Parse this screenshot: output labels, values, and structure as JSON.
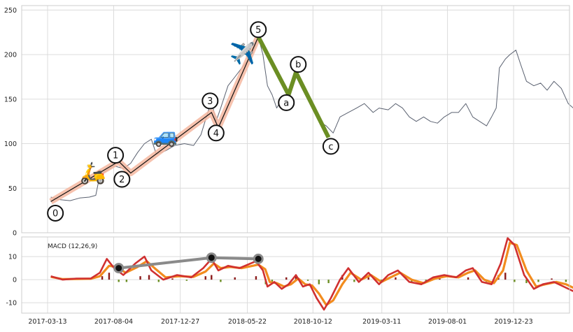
{
  "chart_data": [
    {
      "type": "line",
      "panel": "price",
      "y_ticks": [
        0,
        50,
        100,
        150,
        200,
        250
      ],
      "ylim": [
        0,
        255
      ],
      "grid": true,
      "price_series": [
        {
          "x": "2017-03-20",
          "y": 40
        },
        {
          "x": "2017-04-10",
          "y": 37
        },
        {
          "x": "2017-05-01",
          "y": 36
        },
        {
          "x": "2017-05-22",
          "y": 39
        },
        {
          "x": "2017-06-12",
          "y": 40
        },
        {
          "x": "2017-06-26",
          "y": 42
        },
        {
          "x": "2017-07-05",
          "y": 65
        },
        {
          "x": "2017-07-20",
          "y": 70
        },
        {
          "x": "2017-08-05",
          "y": 75
        },
        {
          "x": "2017-08-25",
          "y": 72
        },
        {
          "x": "2017-09-10",
          "y": 78
        },
        {
          "x": "2017-09-25",
          "y": 90
        },
        {
          "x": "2017-10-10",
          "y": 100
        },
        {
          "x": "2017-10-25",
          "y": 105
        },
        {
          "x": "2017-11-05",
          "y": 88
        },
        {
          "x": "2017-11-25",
          "y": 92
        },
        {
          "x": "2017-12-15",
          "y": 98
        },
        {
          "x": "2018-01-05",
          "y": 100
        },
        {
          "x": "2018-01-25",
          "y": 98
        },
        {
          "x": "2018-02-10",
          "y": 110
        },
        {
          "x": "2018-02-25",
          "y": 135
        },
        {
          "x": "2018-03-05",
          "y": 148
        },
        {
          "x": "2018-03-15",
          "y": 125
        },
        {
          "x": "2018-03-25",
          "y": 140
        },
        {
          "x": "2018-04-10",
          "y": 165
        },
        {
          "x": "2018-04-25",
          "y": 175
        },
        {
          "x": "2018-05-10",
          "y": 185
        },
        {
          "x": "2018-05-25",
          "y": 195
        },
        {
          "x": "2018-06-05",
          "y": 205
        },
        {
          "x": "2018-06-15",
          "y": 220
        },
        {
          "x": "2018-06-25",
          "y": 200
        },
        {
          "x": "2018-07-05",
          "y": 165
        },
        {
          "x": "2018-07-15",
          "y": 155
        },
        {
          "x": "2018-07-25",
          "y": 140
        },
        {
          "x": "2018-08-05",
          "y": 150
        },
        {
          "x": "2018-08-20",
          "y": 145
        },
        {
          "x": "2018-09-01",
          "y": 180
        },
        {
          "x": "2018-09-15",
          "y": 165
        },
        {
          "x": "2018-09-25",
          "y": 155
        },
        {
          "x": "2018-10-10",
          "y": 140
        },
        {
          "x": "2018-10-25",
          "y": 125
        },
        {
          "x": "2018-11-10",
          "y": 120
        },
        {
          "x": "2018-11-25",
          "y": 112
        },
        {
          "x": "2018-12-10",
          "y": 130
        },
        {
          "x": "2018-12-28",
          "y": 135
        },
        {
          "x": "2019-01-15",
          "y": 140
        },
        {
          "x": "2019-02-01",
          "y": 145
        },
        {
          "x": "2019-02-20",
          "y": 135
        },
        {
          "x": "2019-03-05",
          "y": 140
        },
        {
          "x": "2019-03-25",
          "y": 138
        },
        {
          "x": "2019-04-10",
          "y": 145
        },
        {
          "x": "2019-04-25",
          "y": 140
        },
        {
          "x": "2019-05-10",
          "y": 130
        },
        {
          "x": "2019-05-25",
          "y": 125
        },
        {
          "x": "2019-06-10",
          "y": 130
        },
        {
          "x": "2019-06-25",
          "y": 125
        },
        {
          "x": "2019-07-10",
          "y": 123
        },
        {
          "x": "2019-07-25",
          "y": 130
        },
        {
          "x": "2019-08-10",
          "y": 135
        },
        {
          "x": "2019-08-25",
          "y": 135
        },
        {
          "x": "2019-09-10",
          "y": 145
        },
        {
          "x": "2019-09-25",
          "y": 130
        },
        {
          "x": "2019-10-10",
          "y": 125
        },
        {
          "x": "2019-10-25",
          "y": 120
        },
        {
          "x": "2019-11-05",
          "y": 130
        },
        {
          "x": "2019-11-15",
          "y": 140
        },
        {
          "x": "2019-11-22",
          "y": 185
        },
        {
          "x": "2019-12-05",
          "y": 195
        },
        {
          "x": "2019-12-15",
          "y": 200
        },
        {
          "x": "2019-12-28",
          "y": 205
        },
        {
          "x": "2020-01-08",
          "y": 188
        },
        {
          "x": "2020-01-20",
          "y": 170
        },
        {
          "x": "2020-02-05",
          "y": 165
        },
        {
          "x": "2020-02-20",
          "y": 168
        },
        {
          "x": "2020-03-05",
          "y": 160
        },
        {
          "x": "2020-03-20",
          "y": 170
        },
        {
          "x": "2020-04-05",
          "y": 162
        },
        {
          "x": "2020-04-20",
          "y": 145
        },
        {
          "x": "2020-05-01",
          "y": 140
        }
      ],
      "impulse_wave": [
        {
          "x": "2017-03-20",
          "y": 35
        },
        {
          "x": "2017-08-15",
          "y": 80
        },
        {
          "x": "2017-09-10",
          "y": 67
        },
        {
          "x": "2018-03-05",
          "y": 135
        },
        {
          "x": "2018-03-20",
          "y": 118
        },
        {
          "x": "2018-06-15",
          "y": 220
        }
      ],
      "corrective_wave": [
        {
          "x": "2018-06-15",
          "y": 220
        },
        {
          "x": "2018-08-20",
          "y": 155
        },
        {
          "x": "2018-09-05",
          "y": 180
        },
        {
          "x": "2018-11-15",
          "y": 107
        }
      ],
      "wave_labels": [
        {
          "label": "0",
          "x": "2017-03-30",
          "y": 22
        },
        {
          "label": "1",
          "x": "2017-08-08",
          "y": 87
        },
        {
          "label": "2",
          "x": "2017-08-22",
          "y": 60
        },
        {
          "label": "3",
          "x": "2018-03-02",
          "y": 148
        },
        {
          "label": "4",
          "x": "2018-03-15",
          "y": 112
        },
        {
          "label": "5",
          "x": "2018-06-15",
          "y": 228
        },
        {
          "label": "a",
          "x": "2018-08-15",
          "y": 146
        },
        {
          "label": "b",
          "x": "2018-09-10",
          "y": 189
        },
        {
          "label": "c",
          "x": "2018-11-20",
          "y": 97
        }
      ],
      "emoji_markers": [
        {
          "name": "scooter",
          "glyph": "🛵",
          "x": "2017-06-20",
          "y": 66
        },
        {
          "name": "car",
          "glyph": "🚙",
          "x": "2017-11-25",
          "y": 108
        },
        {
          "name": "airplane",
          "glyph": "✈️",
          "x": "2018-05-12",
          "y": 200
        }
      ]
    },
    {
      "type": "line",
      "panel": "macd",
      "label": "MACD (12,26,9)",
      "y_ticks": [
        -10,
        0,
        10
      ],
      "ylim": [
        -14.5,
        18.5
      ],
      "x_ticks": [
        "2017-03-13",
        "2017-08-04",
        "2017-12-27",
        "2018-05-22",
        "2018-10-12",
        "2019-03-11",
        "2019-08-01",
        "2019-12-23"
      ],
      "grid": true,
      "macd_line": [
        {
          "x": "2017-03-20",
          "y": 1.5
        },
        {
          "x": "2017-04-15",
          "y": 0
        },
        {
          "x": "2017-05-15",
          "y": 0.5
        },
        {
          "x": "2017-06-15",
          "y": 0.5
        },
        {
          "x": "2017-07-05",
          "y": 3
        },
        {
          "x": "2017-07-20",
          "y": 9
        },
        {
          "x": "2017-08-05",
          "y": 5
        },
        {
          "x": "2017-08-25",
          "y": 2
        },
        {
          "x": "2017-09-20",
          "y": 7
        },
        {
          "x": "2017-10-10",
          "y": 10
        },
        {
          "x": "2017-10-25",
          "y": 4
        },
        {
          "x": "2017-11-20",
          "y": 0
        },
        {
          "x": "2017-12-20",
          "y": 2
        },
        {
          "x": "2018-01-20",
          "y": 1
        },
        {
          "x": "2018-02-15",
          "y": 5
        },
        {
          "x": "2018-03-05",
          "y": 9
        },
        {
          "x": "2018-03-20",
          "y": 4
        },
        {
          "x": "2018-04-10",
          "y": 6
        },
        {
          "x": "2018-05-05",
          "y": 5
        },
        {
          "x": "2018-06-10",
          "y": 8
        },
        {
          "x": "2018-06-25",
          "y": 4
        },
        {
          "x": "2018-07-05",
          "y": -3
        },
        {
          "x": "2018-07-20",
          "y": -1
        },
        {
          "x": "2018-08-05",
          "y": -4
        },
        {
          "x": "2018-08-20",
          "y": -2
        },
        {
          "x": "2018-09-05",
          "y": 2
        },
        {
          "x": "2018-09-20",
          "y": -3
        },
        {
          "x": "2018-10-05",
          "y": -2
        },
        {
          "x": "2018-10-20",
          "y": -8
        },
        {
          "x": "2018-11-05",
          "y": -13
        },
        {
          "x": "2018-11-20",
          "y": -8
        },
        {
          "x": "2018-12-10",
          "y": 0
        },
        {
          "x": "2018-12-28",
          "y": 5
        },
        {
          "x": "2019-01-20",
          "y": -1
        },
        {
          "x": "2019-02-10",
          "y": 3
        },
        {
          "x": "2019-03-05",
          "y": -2
        },
        {
          "x": "2019-03-25",
          "y": 2
        },
        {
          "x": "2019-04-15",
          "y": 4
        },
        {
          "x": "2019-05-10",
          "y": -1
        },
        {
          "x": "2019-06-05",
          "y": -2
        },
        {
          "x": "2019-07-01",
          "y": 1
        },
        {
          "x": "2019-07-25",
          "y": 2
        },
        {
          "x": "2019-08-20",
          "y": 1
        },
        {
          "x": "2019-09-10",
          "y": 4
        },
        {
          "x": "2019-09-25",
          "y": 5
        },
        {
          "x": "2019-10-15",
          "y": -1
        },
        {
          "x": "2019-11-05",
          "y": -2
        },
        {
          "x": "2019-11-25",
          "y": 7
        },
        {
          "x": "2019-12-10",
          "y": 18
        },
        {
          "x": "2019-12-25",
          "y": 15
        },
        {
          "x": "2020-01-15",
          "y": 2
        },
        {
          "x": "2020-02-05",
          "y": -4
        },
        {
          "x": "2020-02-25",
          "y": -2
        },
        {
          "x": "2020-03-20",
          "y": -1
        },
        {
          "x": "2020-04-10",
          "y": -3
        },
        {
          "x": "2020-05-01",
          "y": -5
        }
      ],
      "signal_line": [
        {
          "x": "2017-03-20",
          "y": 1.2
        },
        {
          "x": "2017-04-15",
          "y": 0.2
        },
        {
          "x": "2017-05-15",
          "y": 0.3
        },
        {
          "x": "2017-06-15",
          "y": 0.4
        },
        {
          "x": "2017-07-05",
          "y": 1.5
        },
        {
          "x": "2017-07-25",
          "y": 6
        },
        {
          "x": "2017-08-10",
          "y": 5.5
        },
        {
          "x": "2017-08-30",
          "y": 3
        },
        {
          "x": "2017-09-25",
          "y": 5.5
        },
        {
          "x": "2017-10-15",
          "y": 8
        },
        {
          "x": "2017-11-01",
          "y": 5
        },
        {
          "x": "2017-11-25",
          "y": 1
        },
        {
          "x": "2017-12-25",
          "y": 1.5
        },
        {
          "x": "2018-01-25",
          "y": 1.2
        },
        {
          "x": "2018-02-20",
          "y": 3.5
        },
        {
          "x": "2018-03-10",
          "y": 7
        },
        {
          "x": "2018-03-25",
          "y": 5
        },
        {
          "x": "2018-04-15",
          "y": 5.5
        },
        {
          "x": "2018-05-10",
          "y": 5
        },
        {
          "x": "2018-06-15",
          "y": 6.5
        },
        {
          "x": "2018-06-30",
          "y": 4.5
        },
        {
          "x": "2018-07-10",
          "y": -1
        },
        {
          "x": "2018-07-25",
          "y": -1.5
        },
        {
          "x": "2018-08-10",
          "y": -3
        },
        {
          "x": "2018-08-25",
          "y": -2
        },
        {
          "x": "2018-09-10",
          "y": 0.5
        },
        {
          "x": "2018-09-25",
          "y": -2
        },
        {
          "x": "2018-10-10",
          "y": -2.5
        },
        {
          "x": "2018-10-25",
          "y": -6
        },
        {
          "x": "2018-11-10",
          "y": -11
        },
        {
          "x": "2018-11-25",
          "y": -9
        },
        {
          "x": "2018-12-15",
          "y": -2
        },
        {
          "x": "2019-01-02",
          "y": 3
        },
        {
          "x": "2019-01-25",
          "y": 0
        },
        {
          "x": "2019-02-15",
          "y": 2
        },
        {
          "x": "2019-03-10",
          "y": -1
        },
        {
          "x": "2019-03-30",
          "y": 1
        },
        {
          "x": "2019-04-20",
          "y": 3
        },
        {
          "x": "2019-05-15",
          "y": 0
        },
        {
          "x": "2019-06-10",
          "y": -1.5
        },
        {
          "x": "2019-07-05",
          "y": 0.5
        },
        {
          "x": "2019-07-30",
          "y": 1.5
        },
        {
          "x": "2019-08-25",
          "y": 1
        },
        {
          "x": "2019-09-15",
          "y": 3
        },
        {
          "x": "2019-09-30",
          "y": 4
        },
        {
          "x": "2019-10-20",
          "y": 0
        },
        {
          "x": "2019-11-10",
          "y": -1.5
        },
        {
          "x": "2019-11-30",
          "y": 4
        },
        {
          "x": "2019-12-15",
          "y": 16
        },
        {
          "x": "2019-12-30",
          "y": 15
        },
        {
          "x": "2020-01-20",
          "y": 4
        },
        {
          "x": "2020-02-10",
          "y": -3
        },
        {
          "x": "2020-03-01",
          "y": -2
        },
        {
          "x": "2020-03-25",
          "y": -1
        },
        {
          "x": "2020-04-15",
          "y": -2
        },
        {
          "x": "2020-05-01",
          "y": -3.5
        }
      ],
      "histogram": [
        {
          "x": "2017-07-10",
          "y": 1.5
        },
        {
          "x": "2017-07-25",
          "y": 3
        },
        {
          "x": "2017-08-15",
          "y": -1
        },
        {
          "x": "2017-09-01",
          "y": -1
        },
        {
          "x": "2017-10-01",
          "y": 1.5
        },
        {
          "x": "2017-10-20",
          "y": 2
        },
        {
          "x": "2017-11-10",
          "y": -1
        },
        {
          "x": "2017-12-10",
          "y": 0.5
        },
        {
          "x": "2018-01-10",
          "y": -0.5
        },
        {
          "x": "2018-02-20",
          "y": 1.5
        },
        {
          "x": "2018-03-05",
          "y": 2
        },
        {
          "x": "2018-03-25",
          "y": -1
        },
        {
          "x": "2018-04-25",
          "y": 1
        },
        {
          "x": "2018-06-10",
          "y": 1.5
        },
        {
          "x": "2018-07-01",
          "y": -2
        },
        {
          "x": "2018-07-15",
          "y": -1.5
        },
        {
          "x": "2018-08-15",
          "y": 1
        },
        {
          "x": "2018-09-05",
          "y": 1.5
        },
        {
          "x": "2018-10-01",
          "y": -0.5
        },
        {
          "x": "2018-10-25",
          "y": -2
        },
        {
          "x": "2018-11-15",
          "y": -1.5
        },
        {
          "x": "2018-12-15",
          "y": 2
        },
        {
          "x": "2019-01-10",
          "y": -1
        },
        {
          "x": "2019-02-10",
          "y": 1
        },
        {
          "x": "2019-03-10",
          "y": -1
        },
        {
          "x": "2019-04-10",
          "y": 1
        },
        {
          "x": "2019-05-15",
          "y": -1
        },
        {
          "x": "2019-06-15",
          "y": -0.5
        },
        {
          "x": "2019-07-15",
          "y": 0.5
        },
        {
          "x": "2019-09-15",
          "y": 1
        },
        {
          "x": "2019-10-25",
          "y": -1
        },
        {
          "x": "2019-11-20",
          "y": 2
        },
        {
          "x": "2019-12-05",
          "y": 3
        },
        {
          "x": "2019-12-25",
          "y": -1
        },
        {
          "x": "2020-01-20",
          "y": -1.5
        },
        {
          "x": "2020-02-15",
          "y": -1
        },
        {
          "x": "2020-03-15",
          "y": 0.5
        },
        {
          "x": "2020-04-15",
          "y": -1
        }
      ],
      "divergence_line": [
        {
          "x": "2017-08-15",
          "y": 5
        },
        {
          "x": "2018-03-05",
          "y": 9.5
        },
        {
          "x": "2018-06-15",
          "y": 9
        }
      ]
    }
  ]
}
